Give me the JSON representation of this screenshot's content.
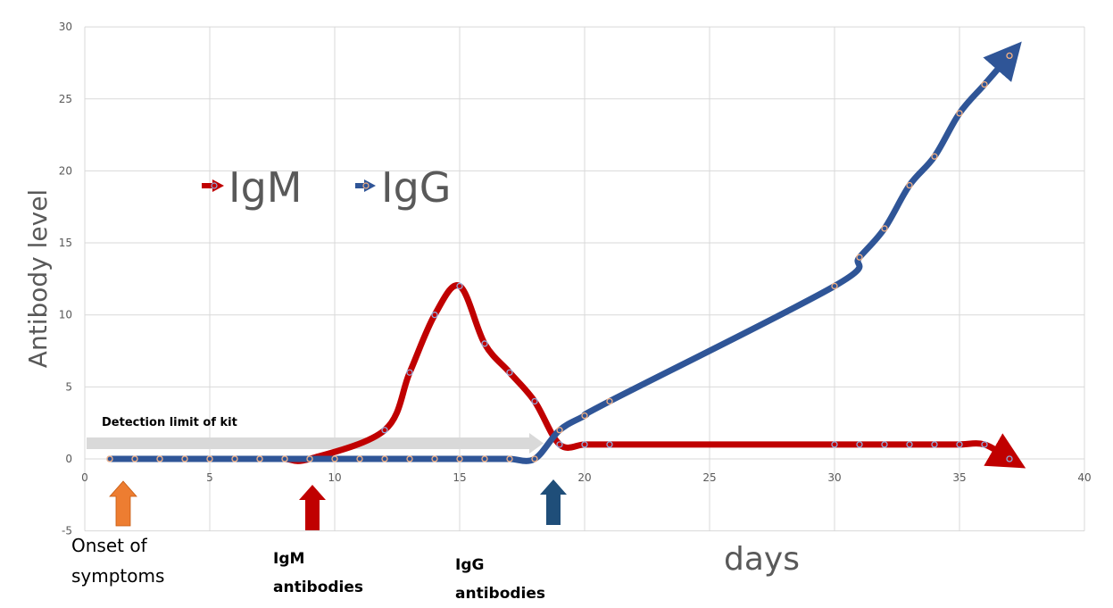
{
  "chart_data": {
    "type": "line",
    "title": "",
    "xlabel": "days",
    "ylabel": "Antibody level",
    "xlim": [
      0,
      40
    ],
    "ylim": [
      -5,
      30
    ],
    "x_ticks": [
      0,
      5,
      10,
      15,
      20,
      25,
      30,
      35,
      40
    ],
    "y_ticks": [
      -5,
      0,
      5,
      10,
      15,
      20,
      25,
      30
    ],
    "grid": true,
    "legend_position": "upper-left-inside",
    "series": [
      {
        "name": "IgM",
        "color": "#c00000",
        "points": [
          [
            1,
            0
          ],
          [
            2,
            0
          ],
          [
            3,
            0
          ],
          [
            4,
            0
          ],
          [
            5,
            0
          ],
          [
            6,
            0
          ],
          [
            7,
            0
          ],
          [
            8,
            0
          ],
          [
            9,
            0
          ],
          [
            12,
            2
          ],
          [
            13,
            6
          ],
          [
            14,
            10
          ],
          [
            15,
            12
          ],
          [
            16,
            8
          ],
          [
            17,
            6
          ],
          [
            18,
            4
          ],
          [
            19,
            1
          ],
          [
            20,
            1
          ],
          [
            21,
            1
          ],
          [
            30,
            1
          ],
          [
            31,
            1
          ],
          [
            32,
            1
          ],
          [
            33,
            1
          ],
          [
            34,
            1
          ],
          [
            35,
            1
          ],
          [
            36,
            1
          ],
          [
            37,
            0
          ]
        ]
      },
      {
        "name": "IgG",
        "color": "#2f5597",
        "points": [
          [
            1,
            0
          ],
          [
            2,
            0
          ],
          [
            3,
            0
          ],
          [
            4,
            0
          ],
          [
            5,
            0
          ],
          [
            6,
            0
          ],
          [
            7,
            0
          ],
          [
            8,
            0
          ],
          [
            9,
            0
          ],
          [
            10,
            0
          ],
          [
            11,
            0
          ],
          [
            12,
            0
          ],
          [
            13,
            0
          ],
          [
            14,
            0
          ],
          [
            15,
            0
          ],
          [
            16,
            0
          ],
          [
            17,
            0
          ],
          [
            18,
            0
          ],
          [
            19,
            2
          ],
          [
            20,
            3
          ],
          [
            21,
            4
          ],
          [
            30,
            12
          ],
          [
            31,
            14
          ],
          [
            32,
            16
          ],
          [
            33,
            19
          ],
          [
            34,
            21
          ],
          [
            35,
            24
          ],
          [
            36,
            26
          ],
          [
            37,
            28
          ]
        ]
      }
    ],
    "annotations": [
      {
        "text": "Detection limit of kit",
        "type": "horizontal-arrow",
        "y": 1.0,
        "x_range": [
          0,
          18.5
        ]
      },
      {
        "text": "Onset of symptoms",
        "type": "up-arrow",
        "x": 1.5,
        "color": "#ed7d31"
      },
      {
        "text": "IgM antibodies",
        "type": "up-arrow",
        "x": 9.1,
        "color": "#c00000"
      },
      {
        "text": "IgG antibodies",
        "type": "up-arrow",
        "x": 18.8,
        "color": "#1f4e79"
      }
    ]
  },
  "legend": {
    "igm": "IgM",
    "igg": "IgG"
  },
  "labels": {
    "ylabel": "Antibody level",
    "xlabel": "days",
    "detection": "Detection limit of kit",
    "onset_line1": "Onset of",
    "onset_line2": "symptoms",
    "igm_line1": "IgM",
    "igm_line2": "antibodies",
    "igg_line1": "IgG",
    "igg_line2": "antibodies"
  }
}
